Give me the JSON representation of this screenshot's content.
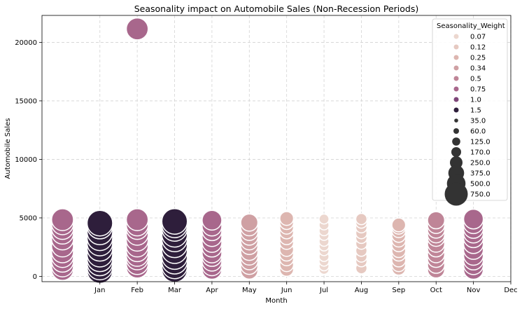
{
  "chart_data": {
    "type": "scatter",
    "title": "Seasonality impact on Automobile Sales (Non-Recession Periods)",
    "xlabel": "Month",
    "ylabel": "Automobile Sales",
    "categories": [
      "Jan",
      "Feb",
      "Mar",
      "Apr",
      "May",
      "Jun",
      "Jul",
      "Aug",
      "Sep",
      "Oct",
      "Nov",
      "Dec"
    ],
    "xlim": [
      -1.55,
      11
    ],
    "ylim": [
      -450,
      22300
    ],
    "yticks": [
      0,
      5000,
      10000,
      15000,
      20000
    ],
    "grid": true,
    "legend": {
      "title": "Seasonality_Weight",
      "placement": "top-right",
      "hue_entries": [
        {
          "label": "0.07",
          "color": "#ecd7cf"
        },
        {
          "label": "0.12",
          "color": "#e6c9c1"
        },
        {
          "label": "0.25",
          "color": "#ddb6b0"
        },
        {
          "label": "0.34",
          "color": "#cfa0a3"
        },
        {
          "label": "0.5",
          "color": "#bf8597"
        },
        {
          "label": "0.75",
          "color": "#a8678c"
        },
        {
          "label": "1.0",
          "color": "#7e4679"
        },
        {
          "label": "1.5",
          "color": "#2e1e3b"
        }
      ],
      "size_entries": [
        {
          "label": "35.0",
          "value": 35
        },
        {
          "label": "60.0",
          "value": 60
        },
        {
          "label": "125.0",
          "value": 125
        },
        {
          "label": "170.0",
          "value": 170
        },
        {
          "label": "250.0",
          "value": 250
        },
        {
          "label": "375.0",
          "value": 375
        },
        {
          "label": "500.0",
          "value": 500
        },
        {
          "label": "750.0",
          "value": 750
        }
      ]
    },
    "series": [
      {
        "month": -1,
        "weight": "0.75",
        "size": 500,
        "y": [
          600,
          900,
          1300,
          1700,
          2100,
          2600,
          3200,
          3700,
          4100,
          4500,
          4850
        ]
      },
      {
        "month": 0,
        "weight": "1.5",
        "size": 750,
        "y": [
          500,
          800,
          1150,
          1500,
          1900,
          2400,
          2850,
          3300,
          3800,
          4300,
          4550
        ]
      },
      {
        "month": 1,
        "weight": "0.75",
        "size": 500,
        "y": [
          800,
          1100,
          1500,
          1800,
          2200,
          2600,
          3100,
          3600,
          4100,
          4400,
          4850,
          21150
        ]
      },
      {
        "month": 2,
        "weight": "1.5",
        "size": 750,
        "y": [
          600,
          900,
          1300,
          1700,
          2200,
          2700,
          3200,
          3600,
          4100,
          4400,
          4700
        ]
      },
      {
        "month": 3,
        "weight": "0.75",
        "size": 375,
        "y": [
          600,
          900,
          1300,
          1700,
          2000,
          2500,
          2900,
          3400,
          3900,
          4300,
          4800
        ]
      },
      {
        "month": 4,
        "weight": "0.34",
        "size": 250,
        "y": [
          500,
          900,
          1300,
          1700,
          2100,
          2600,
          3000,
          3400,
          3800,
          4200,
          4600
        ]
      },
      {
        "month": 5,
        "weight": "0.25",
        "size": 125,
        "y": [
          600,
          1000,
          1500,
          1900,
          2300,
          2900,
          3300,
          3800,
          4200,
          4600,
          4950
        ]
      },
      {
        "month": 6,
        "weight": "0.07",
        "size": 35,
        "y": [
          600,
          900,
          1300,
          1700,
          2200,
          2600,
          3000,
          3500,
          3900,
          4400,
          4900
        ]
      },
      {
        "month": 7,
        "weight": "0.12",
        "size": 60,
        "y": [
          700,
          1300,
          1700,
          2200,
          2800,
          3300,
          3700,
          4200,
          4600,
          4900
        ]
      },
      {
        "month": 8,
        "weight": "0.25",
        "size": 125,
        "y": [
          700,
          1000,
          1400,
          1900,
          2200,
          2700,
          3100,
          3500,
          3900,
          4200,
          4400
        ]
      },
      {
        "month": 9,
        "weight": "0.5",
        "size": 250,
        "y": [
          600,
          1000,
          1500,
          1900,
          2400,
          2800,
          3300,
          3600,
          4000,
          4400,
          4800
        ]
      },
      {
        "month": 10,
        "weight": "0.75",
        "size": 375,
        "y": [
          600,
          1000,
          1400,
          1800,
          2300,
          2800,
          3300,
          3700,
          4100,
          4500,
          4900
        ]
      }
    ]
  }
}
